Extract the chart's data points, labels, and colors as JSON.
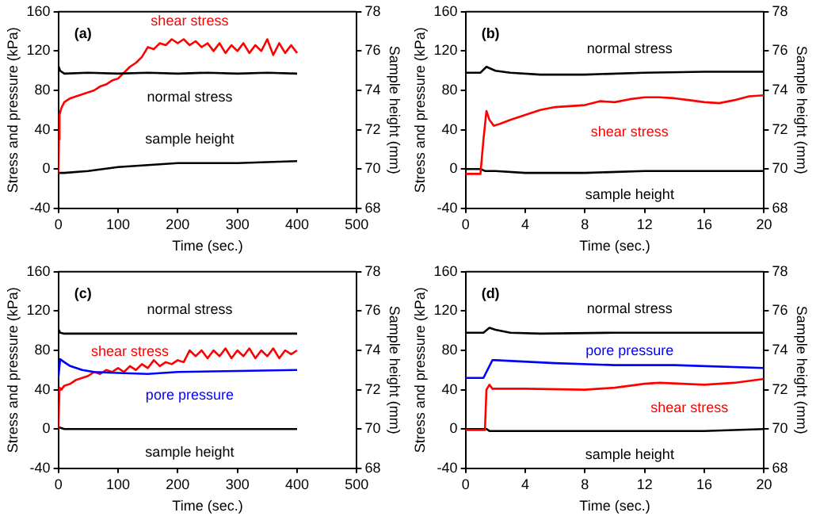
{
  "chart_data": [
    {
      "type": "line",
      "title": "(a)",
      "xlabel": "Time (sec.)",
      "ylabel": "Stress and pressure (kPa)",
      "y2label": "Sample height (mm)",
      "marker": "none",
      "xlim": [
        0,
        500
      ],
      "xticks": [
        0,
        100,
        200,
        300,
        400,
        500
      ],
      "ylim": [
        -40,
        160
      ],
      "yticks": [
        -40,
        0,
        40,
        80,
        120,
        160
      ],
      "y2lim": [
        68,
        78
      ],
      "y2ticks": [
        68,
        70,
        72,
        74,
        76,
        78
      ],
      "series": [
        {
          "name": "normal stress",
          "color": "#000000",
          "x": [
            0,
            3,
            10,
            50,
            100,
            150,
            200,
            250,
            300,
            350,
            400
          ],
          "values": [
            105,
            100,
            97,
            98,
            97,
            98,
            97,
            98,
            97,
            98,
            97
          ]
        },
        {
          "name": "shear stress",
          "color": "#ff0000",
          "x": [
            0,
            1,
            2,
            5,
            10,
            20,
            30,
            40,
            50,
            60,
            70,
            80,
            90,
            100,
            110,
            120,
            130,
            140,
            150,
            160,
            170,
            180,
            190,
            200,
            210,
            220,
            230,
            240,
            250,
            260,
            270,
            280,
            290,
            300,
            310,
            320,
            330,
            340,
            350,
            360,
            370,
            380,
            390,
            400
          ],
          "values": [
            -5,
            30,
            55,
            62,
            68,
            72,
            74,
            76,
            78,
            80,
            84,
            86,
            90,
            92,
            98,
            104,
            108,
            114,
            124,
            122,
            128,
            126,
            132,
            128,
            132,
            126,
            130,
            124,
            128,
            120,
            128,
            118,
            126,
            120,
            128,
            118,
            126,
            120,
            132,
            116,
            128,
            118,
            126,
            118
          ]
        },
        {
          "name": "sample height",
          "color": "#000000",
          "axis": "y2",
          "x": [
            0,
            10,
            50,
            100,
            150,
            200,
            300,
            400
          ],
          "values": [
            69.8,
            69.8,
            69.9,
            70.1,
            70.2,
            70.3,
            70.3,
            70.4
          ]
        }
      ]
    },
    {
      "type": "line",
      "title": "(b)",
      "xlabel": "Time (sec.)",
      "ylabel": "Stress and pressure (kPa)",
      "y2label": "Sample height (mm)",
      "marker": "none",
      "xlim": [
        0,
        20
      ],
      "xticks": [
        0,
        4,
        8,
        12,
        16,
        20
      ],
      "ylim": [
        -40,
        160
      ],
      "yticks": [
        -40,
        0,
        40,
        80,
        120,
        160
      ],
      "y2lim": [
        68,
        78
      ],
      "y2ticks": [
        68,
        70,
        72,
        74,
        76,
        78
      ],
      "series": [
        {
          "name": "normal stress",
          "color": "#000000",
          "x": [
            0,
            1,
            1.4,
            2,
            3,
            5,
            8,
            12,
            16,
            20
          ],
          "values": [
            98,
            98,
            104,
            100,
            98,
            96,
            96,
            98,
            99,
            99
          ]
        },
        {
          "name": "shear stress",
          "color": "#ff0000",
          "x": [
            0,
            1,
            1.2,
            1.4,
            1.6,
            1.9,
            2.3,
            3,
            4,
            5,
            6,
            7,
            8,
            9,
            10,
            11,
            12,
            13,
            14,
            15,
            16,
            17,
            18,
            19,
            20
          ],
          "values": [
            -5,
            -5,
            30,
            59,
            50,
            44,
            46,
            50,
            55,
            60,
            63,
            64,
            65,
            69,
            68,
            71,
            73,
            73,
            72,
            70,
            68,
            67,
            70,
            74,
            75
          ]
        },
        {
          "name": "sample height",
          "color": "#000000",
          "axis": "y2",
          "x": [
            0,
            1,
            1.3,
            2,
            4,
            8,
            12,
            20
          ],
          "values": [
            70,
            70,
            69.9,
            69.9,
            69.8,
            69.8,
            69.9,
            69.9
          ]
        }
      ]
    },
    {
      "type": "line",
      "title": "(c)",
      "xlabel": "Time (sec.)",
      "ylabel": "Stress and pressure (kPa)",
      "y2label": "Sample height (mm)",
      "marker": "none",
      "xlim": [
        0,
        500
      ],
      "xticks": [
        0,
        100,
        200,
        300,
        400,
        500
      ],
      "ylim": [
        -40,
        160
      ],
      "yticks": [
        -40,
        0,
        40,
        80,
        120,
        160
      ],
      "y2lim": [
        68,
        78
      ],
      "y2ticks": [
        68,
        70,
        72,
        74,
        76,
        78
      ],
      "series": [
        {
          "name": "normal stress",
          "color": "#000000",
          "x": [
            0,
            3,
            10,
            100,
            200,
            300,
            400
          ],
          "values": [
            102,
            98,
            97,
            97,
            97,
            97,
            97
          ]
        },
        {
          "name": "pore pressure",
          "color": "#0000ff",
          "x": [
            0,
            3,
            10,
            20,
            40,
            60,
            100,
            150,
            200,
            300,
            400
          ],
          "values": [
            52,
            71,
            68,
            64,
            60,
            58,
            57,
            56,
            58,
            59,
            60
          ]
        },
        {
          "name": "shear stress",
          "color": "#ff0000",
          "x": [
            0,
            2,
            5,
            10,
            20,
            30,
            40,
            50,
            60,
            70,
            80,
            90,
            100,
            110,
            120,
            130,
            140,
            150,
            160,
            170,
            180,
            190,
            200,
            210,
            220,
            230,
            240,
            250,
            260,
            270,
            280,
            290,
            300,
            310,
            320,
            330,
            340,
            350,
            360,
            370,
            380,
            390,
            400
          ],
          "values": [
            0,
            42,
            40,
            44,
            46,
            50,
            52,
            54,
            58,
            56,
            60,
            58,
            62,
            58,
            64,
            60,
            66,
            62,
            70,
            64,
            68,
            66,
            70,
            68,
            80,
            74,
            80,
            72,
            80,
            74,
            82,
            72,
            80,
            74,
            82,
            72,
            80,
            74,
            82,
            72,
            80,
            76,
            80
          ]
        },
        {
          "name": "sample height",
          "color": "#000000",
          "axis": "y2",
          "x": [
            0,
            10,
            100,
            200,
            300,
            400
          ],
          "values": [
            70.1,
            70,
            70,
            70,
            70,
            70
          ]
        }
      ]
    },
    {
      "type": "line",
      "title": "(d)",
      "xlabel": "Time (sec.)",
      "ylabel": "Stress and pressure (kPa)",
      "y2label": "Sample height (mm)",
      "marker": "none",
      "xlim": [
        0,
        20
      ],
      "xticks": [
        0,
        4,
        8,
        12,
        16,
        20
      ],
      "ylim": [
        -40,
        160
      ],
      "yticks": [
        -40,
        0,
        40,
        80,
        120,
        160
      ],
      "y2lim": [
        68,
        78
      ],
      "y2ticks": [
        68,
        70,
        72,
        74,
        76,
        78
      ],
      "series": [
        {
          "name": "normal stress",
          "color": "#000000",
          "x": [
            0,
            1.2,
            1.6,
            2,
            3,
            5,
            10,
            20
          ],
          "values": [
            98,
            98,
            103,
            101,
            98,
            97,
            98,
            98
          ]
        },
        {
          "name": "pore pressure",
          "color": "#0000ff",
          "x": [
            0,
            1.2,
            1.8,
            2,
            6,
            10,
            14,
            20
          ],
          "values": [
            52,
            52,
            70,
            70,
            67,
            65,
            65,
            62
          ]
        },
        {
          "name": "shear stress",
          "color": "#ff0000",
          "x": [
            0,
            1.3,
            1.4,
            1.6,
            1.8,
            4,
            8,
            10,
            12,
            13,
            16,
            18,
            20
          ],
          "values": [
            -1,
            -1,
            40,
            45,
            41,
            41,
            40,
            42,
            46,
            47,
            45,
            47,
            51
          ]
        },
        {
          "name": "sample height",
          "color": "#000000",
          "axis": "y2",
          "x": [
            0,
            1.4,
            1.6,
            4,
            16,
            20
          ],
          "values": [
            70,
            70,
            69.9,
            69.9,
            69.9,
            70
          ]
        }
      ]
    }
  ]
}
